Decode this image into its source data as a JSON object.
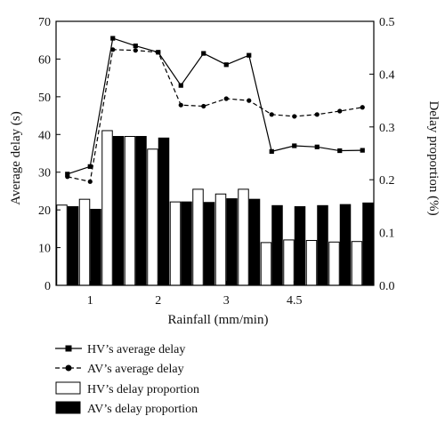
{
  "chart_data": {
    "type": "bar+line",
    "title": "",
    "xlabel": "Rainfall (mm/min)",
    "ylabel_left": "Average delay (s)",
    "ylabel_right": "Delay proportion (%)",
    "ylim_left": [
      0,
      70
    ],
    "ylim_right": [
      0,
      0.5
    ],
    "x_ticks": [
      {
        "label": "1",
        "at": 1.5
      },
      {
        "label": "2",
        "at": 4.5
      },
      {
        "label": "3",
        "at": 7.5
      },
      {
        "label": "4.5",
        "at": 10.5
      }
    ],
    "y_ticks_left": [
      "0",
      "10",
      "20",
      "30",
      "40",
      "50",
      "60",
      "70"
    ],
    "y_ticks_right": [
      "0.0",
      "0.1",
      "0.2",
      "0.3",
      "0.4",
      "0.5"
    ],
    "grid": false,
    "legend_position": "bottom",
    "series": [
      {
        "name": "HV’s average delay",
        "kind": "line",
        "axis": "left",
        "style": "solid",
        "marker": "square",
        "values": [
          29.5,
          31.5,
          65.5,
          63.5,
          61.8,
          53,
          61.5,
          58.5,
          61,
          35.5,
          37,
          36.7,
          35.7,
          35.8
        ]
      },
      {
        "name": "AV’s average delay",
        "kind": "line",
        "axis": "left",
        "style": "dashed",
        "marker": "circle",
        "values": [
          28.8,
          27.5,
          62.5,
          62.3,
          61.8,
          47.8,
          47.5,
          49.5,
          49,
          45.3,
          44.8,
          45.3,
          46.2,
          47.2
        ]
      },
      {
        "name": "HV’s delay proportion",
        "kind": "bar",
        "axis": "right",
        "color": "#ffffff",
        "values": [
          0.152,
          0.163,
          0.293,
          0.282,
          0.258,
          0.158,
          0.182,
          0.173,
          0.182,
          0.081,
          0.086,
          0.085,
          0.082,
          0.083
        ]
      },
      {
        "name": "AV’s delay proportion",
        "kind": "bar",
        "axis": "right",
        "color": "#000000",
        "values": [
          0.149,
          0.144,
          0.282,
          0.282,
          0.279,
          0.158,
          0.157,
          0.164,
          0.163,
          0.151,
          0.149,
          0.151,
          0.153,
          0.156
        ]
      }
    ]
  }
}
